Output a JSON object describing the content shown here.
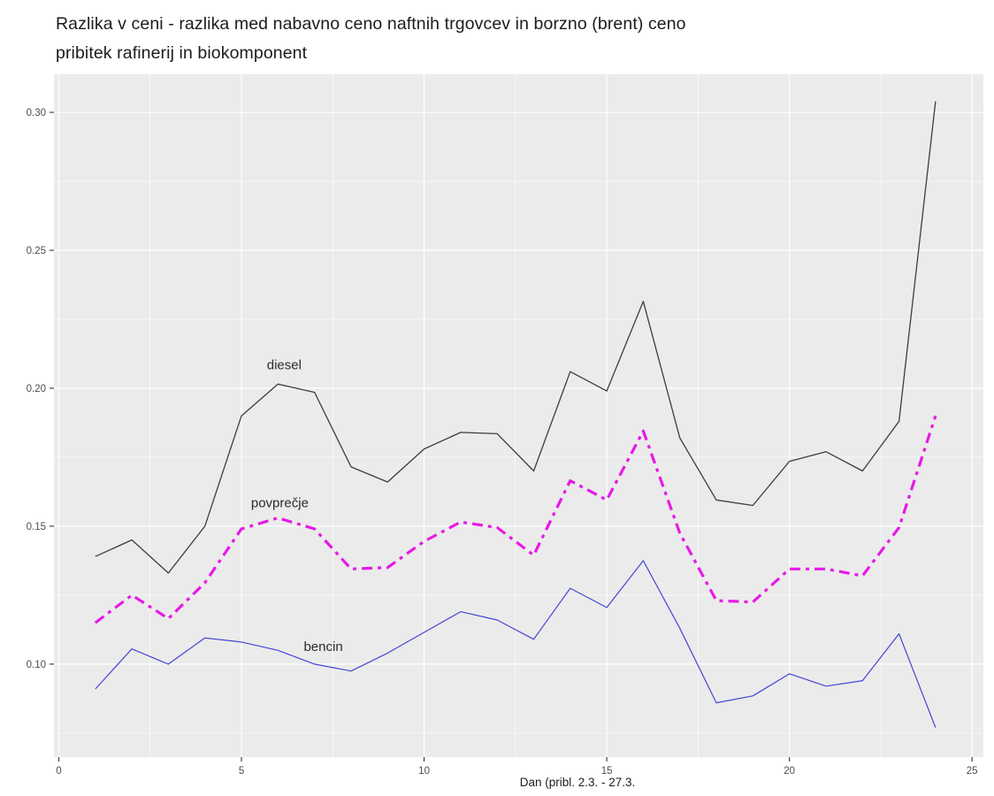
{
  "title": {
    "line1": "Razlika v ceni - razlika med nabavno ceno naftnih trgovcev in borzno (brent) ceno",
    "line2": "pribitek rafinerij in biokomponent"
  },
  "chart_data": {
    "type": "line",
    "xlabel": "Dan (pribl. 2.3. - 27.3.",
    "ylabel": "",
    "panel_bg": "#EBEBEB",
    "grid_color": "#FFFFFF",
    "tick_label_color": "#4d4d4d",
    "xlim": [
      -0.133,
      25.31
    ],
    "ylim": [
      0.0663,
      0.3138
    ],
    "x": [
      1,
      2,
      3,
      4,
      5,
      6,
      7,
      8,
      9,
      10,
      11,
      12,
      13,
      14,
      15,
      16,
      17,
      18,
      19,
      20,
      21,
      22,
      23,
      24
    ],
    "series": [
      {
        "name": "diesel",
        "color": "#3D3D3D",
        "width": 1.3,
        "dash": "",
        "values": [
          0.139,
          0.145,
          0.133,
          0.15,
          0.19,
          0.2015,
          0.1985,
          0.1715,
          0.166,
          0.178,
          0.184,
          0.1835,
          0.17,
          0.206,
          0.199,
          0.2315,
          0.182,
          0.1595,
          0.1575,
          0.1735,
          0.177,
          0.17,
          0.188,
          0.304
        ]
      },
      {
        "name": "povprečje",
        "color": "#E61AE6",
        "width": 3.2,
        "dash": "12 6 4 6",
        "values": [
          0.115,
          0.125,
          0.1165,
          0.1295,
          0.149,
          0.153,
          0.149,
          0.1345,
          0.135,
          0.1445,
          0.1515,
          0.1495,
          0.1395,
          0.1665,
          0.1595,
          0.1845,
          0.1475,
          0.123,
          0.1225,
          0.1345,
          0.1345,
          0.132,
          0.1495,
          0.19
        ]
      },
      {
        "name": "bencin",
        "color": "#4545D6",
        "width": 1.2,
        "dash": "",
        "values": [
          0.091,
          0.1055,
          0.1,
          0.1095,
          0.108,
          0.105,
          0.1,
          0.0975,
          0.104,
          0.1115,
          0.119,
          0.116,
          0.109,
          0.1275,
          0.1205,
          0.1375,
          0.113,
          0.086,
          0.0885,
          0.0965,
          0.092,
          0.094,
          0.111,
          0.077
        ]
      }
    ],
    "annotations": [
      {
        "text": "diesel",
        "x": 6.17,
        "y": 0.2085
      },
      {
        "text": "povprečje",
        "x": 6.05,
        "y": 0.1585
      },
      {
        "text": "bencin",
        "x": 7.24,
        "y": 0.1064
      }
    ],
    "x_ticks": {
      "values": [
        0,
        5,
        10,
        15,
        20,
        25
      ],
      "labels": [
        "0",
        "5",
        "10",
        "15",
        "20",
        "25"
      ],
      "minor": [
        2.5,
        7.5,
        12.5,
        17.5,
        22.5
      ]
    },
    "y_ticks": {
      "values": [
        0.1,
        0.15,
        0.2,
        0.25,
        0.3
      ],
      "labels": [
        "0.10",
        "0.15",
        "0.20",
        "0.25",
        "0.30"
      ],
      "minor": [
        0.075,
        0.125,
        0.175,
        0.225,
        0.275
      ]
    },
    "legend": "none (direct line labels)",
    "grid": "major and minor, white on gray panel"
  }
}
